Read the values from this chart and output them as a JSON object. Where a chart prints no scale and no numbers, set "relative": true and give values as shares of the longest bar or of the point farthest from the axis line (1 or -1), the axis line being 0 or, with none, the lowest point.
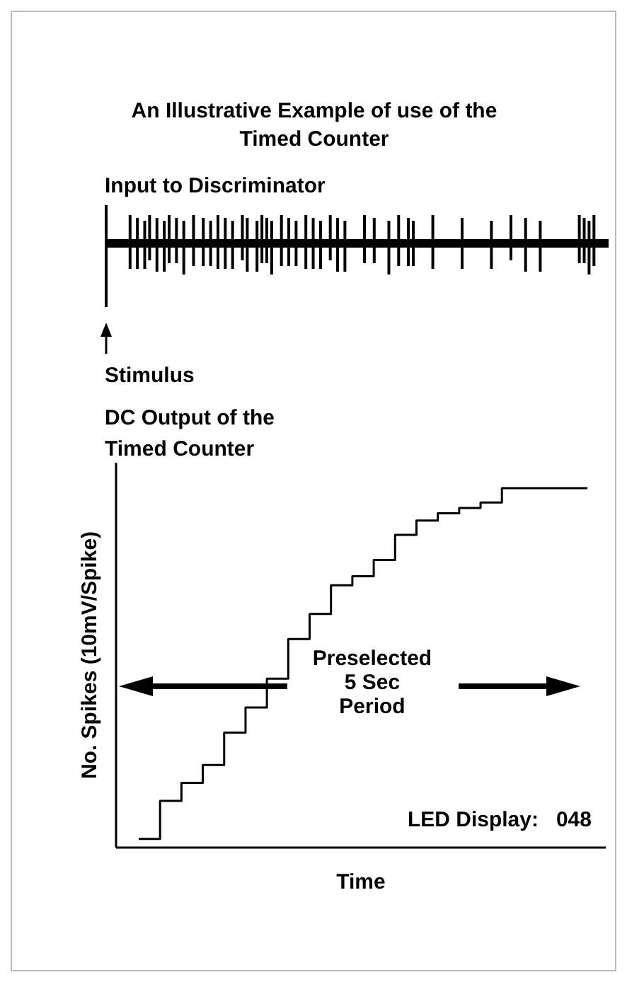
{
  "chart_data": {
    "type": "step",
    "title": "An Illustrative Example of use of the Timed Counter",
    "subtitle": "DC Output of the Timed Counter",
    "xlabel": "Time",
    "ylabel": "No. Spikes (10mV/Spike)",
    "relative": true,
    "categories": [
      null,
      null,
      null,
      null,
      null,
      null,
      null,
      null,
      null,
      null,
      null,
      null,
      null,
      null,
      null,
      null,
      null,
      null,
      null,
      null,
      null,
      null
    ],
    "series": [
      {
        "color": "#000000",
        "values": [
          0.024,
          0.13,
          0.18,
          0.23,
          0.32,
          0.39,
          0.47,
          0.58,
          0.65,
          0.73,
          0.755,
          0.8,
          0.87,
          0.91,
          0.93,
          0.945,
          0.96,
          1,
          1,
          1,
          1,
          1
        ]
      }
    ],
    "annotations": [
      "Input to Discriminator",
      "Stimulus",
      "Preselected\n5 Sec\nPeriod",
      "LED Display:   048"
    ],
    "marker": "none",
    "line_style": "solid"
  }
}
